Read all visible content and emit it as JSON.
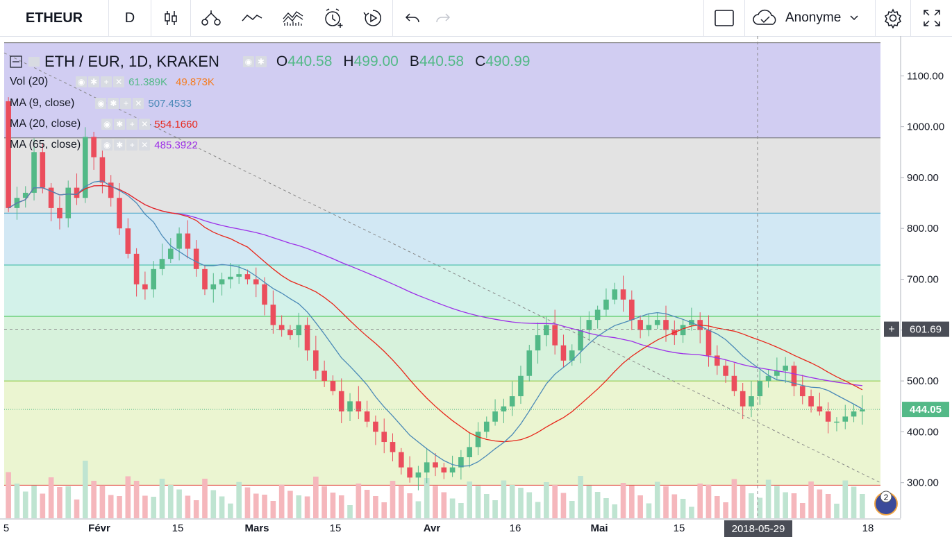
{
  "toolbar": {
    "symbol": "ETHEUR",
    "interval": "D",
    "user": "Anonyme",
    "icons": [
      "candles-icon",
      "indicators-icon",
      "compare-icon",
      "templates-icon",
      "alert-icon",
      "replay-icon",
      "undo-icon",
      "redo-icon",
      "fullscreen-checkbox-icon",
      "cloud-icon",
      "chevron-down-icon",
      "settings-icon",
      "expand-icon"
    ]
  },
  "legend": {
    "title": "ETH / EUR, 1D, KRAKEN",
    "o_label": "O",
    "o": "440.58",
    "h_label": "H",
    "h": "499.00",
    "b_label": "B",
    "b": "440.58",
    "c_label": "C",
    "c": "490.99",
    "vol_label": "Vol (20)",
    "vol1": "61.389K",
    "vol2": "49.873K",
    "ma9_label": "MA (9, close)",
    "ma9": "507.4533",
    "ma20_label": "MA (20, close)",
    "ma20": "554.1660",
    "ma65_label": "MA (65, close)",
    "ma65": "485.3922"
  },
  "colors": {
    "up": "#53b987",
    "down": "#eb4d5c",
    "ma9": "#4a89b7",
    "ma20": "#e8261a",
    "ma65": "#9d2fe8",
    "vol_up": "#bfe4d1",
    "vol_down": "#f5b7bc",
    "price_tag": "#53b987",
    "crosshair_tag": "#4a4d56"
  },
  "chart_data": {
    "type": "candlestick",
    "title": "ETH / EUR, 1D, KRAKEN",
    "xlabel": "",
    "ylabel": "",
    "y_ticks": [
      "1100.00",
      "1000.00",
      "900.00",
      "800.00",
      "700.00",
      "600.00",
      "500.00",
      "400.00",
      "300.00"
    ],
    "x_ticks": [
      "5",
      "Févr",
      "15",
      "Mars",
      "15",
      "Avr",
      "16",
      "Mai",
      "15",
      "18"
    ],
    "ylim": [
      230,
      1170
    ],
    "crosshair_date": "2018-05-29",
    "crosshair_price": "601.69",
    "last_price": "444.05",
    "fib_levels": [
      1165,
      978,
      830,
      728,
      627,
      500,
      295
    ],
    "fib_fills": [
      "#d1cdf2",
      "#e3e3e3",
      "#d2e8f4",
      "#d3f2ea",
      "#d7f2dc",
      "#ebf5d1",
      "#f5d0d0"
    ],
    "fib_lines": [
      "#666666",
      "#666666",
      "#4aa6c8",
      "#34b8a0",
      "#38c04a",
      "#8cc63f",
      "#e0443a",
      "#cccccc"
    ],
    "candles": [
      [
        1050,
        840
      ],
      [
        840,
        860
      ],
      [
        860,
        870
      ],
      [
        870,
        950
      ],
      [
        950,
        880
      ],
      [
        880,
        840
      ],
      [
        840,
        820
      ],
      [
        820,
        880
      ],
      [
        880,
        860
      ],
      [
        860,
        980
      ],
      [
        980,
        940
      ],
      [
        940,
        890
      ],
      [
        890,
        860
      ],
      [
        860,
        800
      ],
      [
        800,
        750
      ],
      [
        750,
        690
      ],
      [
        690,
        680
      ],
      [
        680,
        720
      ],
      [
        720,
        740
      ],
      [
        740,
        760
      ],
      [
        760,
        790
      ],
      [
        790,
        760
      ],
      [
        760,
        720
      ],
      [
        720,
        680
      ],
      [
        680,
        690
      ],
      [
        690,
        700
      ],
      [
        700,
        705
      ],
      [
        705,
        710
      ],
      [
        710,
        700
      ],
      [
        700,
        690
      ],
      [
        690,
        650
      ],
      [
        650,
        610
      ],
      [
        610,
        600
      ],
      [
        600,
        590
      ],
      [
        590,
        610
      ],
      [
        610,
        560
      ],
      [
        560,
        520
      ],
      [
        520,
        500
      ],
      [
        500,
        480
      ],
      [
        480,
        440
      ],
      [
        440,
        460
      ],
      [
        460,
        440
      ],
      [
        440,
        420
      ],
      [
        420,
        400
      ],
      [
        400,
        380
      ],
      [
        380,
        360
      ],
      [
        360,
        330
      ],
      [
        330,
        310
      ],
      [
        310,
        320
      ],
      [
        320,
        340
      ],
      [
        340,
        330
      ],
      [
        330,
        320
      ],
      [
        320,
        330
      ],
      [
        330,
        350
      ],
      [
        350,
        370
      ],
      [
        370,
        400
      ],
      [
        400,
        420
      ],
      [
        420,
        440
      ],
      [
        440,
        450
      ],
      [
        450,
        470
      ],
      [
        470,
        510
      ],
      [
        510,
        560
      ],
      [
        560,
        590
      ],
      [
        590,
        610
      ],
      [
        610,
        570
      ],
      [
        570,
        540
      ],
      [
        540,
        560
      ],
      [
        560,
        600
      ],
      [
        600,
        620
      ],
      [
        620,
        640
      ],
      [
        640,
        660
      ],
      [
        660,
        680
      ],
      [
        680,
        660
      ],
      [
        660,
        620
      ],
      [
        620,
        600
      ],
      [
        600,
        610
      ],
      [
        610,
        620
      ],
      [
        620,
        600
      ],
      [
        600,
        590
      ],
      [
        590,
        610
      ],
      [
        610,
        620
      ],
      [
        620,
        600
      ],
      [
        600,
        550
      ],
      [
        550,
        530
      ],
      [
        530,
        510
      ],
      [
        510,
        480
      ],
      [
        480,
        450
      ],
      [
        450,
        470
      ],
      [
        470,
        500
      ],
      [
        500,
        510
      ],
      [
        510,
        520
      ],
      [
        520,
        530
      ],
      [
        530,
        490
      ],
      [
        490,
        470
      ],
      [
        470,
        450
      ],
      [
        450,
        440
      ],
      [
        440,
        420
      ],
      [
        420,
        420
      ],
      [
        420,
        430
      ],
      [
        430,
        440
      ],
      [
        440,
        444
      ]
    ]
  }
}
